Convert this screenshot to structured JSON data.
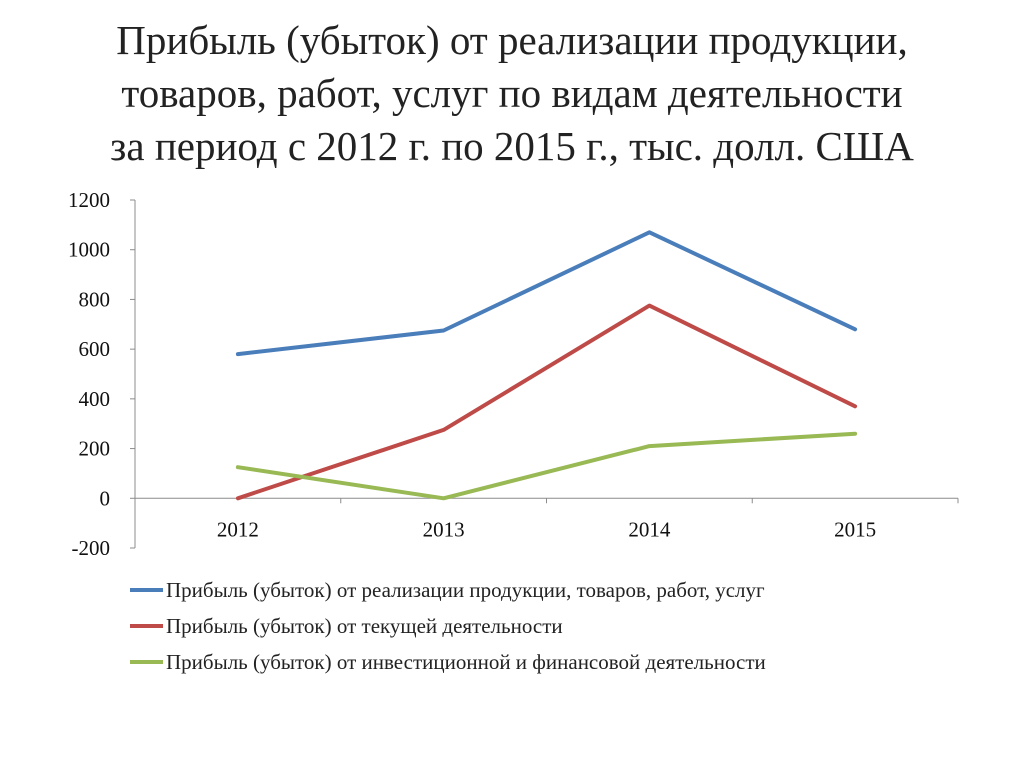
{
  "title_lines": [
    "Прибыль (убыток) от реализации продукции,",
    "товаров, работ, услуг по видам деятельности",
    "за период с 2012 г. по 2015 г., тыс. долл. США"
  ],
  "chart_data": {
    "type": "line",
    "title": "Прибыль (убыток) от реализации продукции, товаров, работ, услуг по видам деятельности за период с 2012 г. по 2015 г., тыс. долл. США",
    "categories": [
      "2012",
      "2013",
      "2014",
      "2015"
    ],
    "ylim": [
      -200,
      1200
    ],
    "yticks": [
      1200,
      1000,
      800,
      600,
      400,
      200,
      0,
      -200
    ],
    "grid": false,
    "legend_position": "bottom",
    "series": [
      {
        "name": "Прибыль (убыток) от реализации продукции, товаров, работ, услуг",
        "color": "#4a7ebb",
        "values": [
          580,
          675,
          1070,
          680
        ]
      },
      {
        "name": "Прибыль (убыток) от текущей деятельности",
        "color": "#be4b48",
        "values": [
          0,
          275,
          775,
          370
        ]
      },
      {
        "name": "Прибыль (убыток) от инвестиционной и финансовой деятельности",
        "color": "#98b954",
        "values": [
          125,
          0,
          210,
          260
        ]
      }
    ]
  }
}
